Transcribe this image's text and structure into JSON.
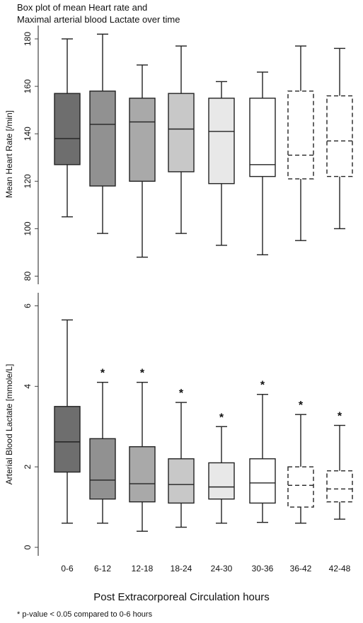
{
  "chart_data": [
    {
      "type": "box",
      "title": "Box plot of mean Heart rate and",
      "subtitle": "Maximal arterial blood Lactate over time",
      "ylabel": "Mean Heart Rate [/min]",
      "ylim": [
        80,
        185
      ],
      "yticks": [
        "80",
        "100",
        "120",
        "140",
        "160",
        "180"
      ],
      "categories": [
        "0-6",
        "6-12",
        "12-18",
        "18-24",
        "24-30",
        "30-36",
        "36-42",
        "42-48"
      ],
      "boxes": [
        {
          "min": 105,
          "q1": 127,
          "median": 138,
          "q3": 157,
          "max": 180
        },
        {
          "min": 98,
          "q1": 118,
          "median": 144,
          "q3": 158,
          "max": 182
        },
        {
          "min": 88,
          "q1": 120,
          "median": 145,
          "q3": 155,
          "max": 169
        },
        {
          "min": 98,
          "q1": 124,
          "median": 142,
          "q3": 157,
          "max": 177
        },
        {
          "min": 93,
          "q1": 119,
          "median": 141,
          "q3": 155,
          "max": 162
        },
        {
          "min": 89,
          "q1": 122,
          "median": 127,
          "q3": 155,
          "max": 166
        },
        {
          "min": 95,
          "q1": 121,
          "median": 131,
          "q3": 158,
          "max": 177
        },
        {
          "min": 100,
          "q1": 122,
          "median": 137,
          "q3": 156,
          "max": 176
        }
      ],
      "fills": [
        "#6e6e6e",
        "#919191",
        "#a9a9a9",
        "#c8c8c8",
        "#e8e8e8",
        "#ffffff",
        "#ffffff",
        "#ffffff"
      ],
      "dashed": [
        false,
        false,
        false,
        false,
        false,
        false,
        true,
        true
      ]
    },
    {
      "type": "box",
      "ylabel": "Arterial Blood Lactate [mmole/L]",
      "ylim": [
        0,
        6
      ],
      "yticks": [
        "0",
        "2",
        "4",
        "6"
      ],
      "xlabel": "Post Extracorporeal Circulation hours",
      "categories": [
        "0-6",
        "6-12",
        "12-18",
        "18-24",
        "24-30",
        "30-36",
        "36-42",
        "42-48"
      ],
      "boxes": [
        {
          "min": 0.6,
          "q1": 1.87,
          "median": 2.62,
          "q3": 3.5,
          "max": 5.65
        },
        {
          "min": 0.6,
          "q1": 1.2,
          "median": 1.67,
          "q3": 2.7,
          "max": 4.1
        },
        {
          "min": 0.4,
          "q1": 1.13,
          "median": 1.58,
          "q3": 2.5,
          "max": 4.1
        },
        {
          "min": 0.5,
          "q1": 1.1,
          "median": 1.56,
          "q3": 2.2,
          "max": 3.6
        },
        {
          "min": 0.6,
          "q1": 1.2,
          "median": 1.5,
          "q3": 2.1,
          "max": 3.0
        },
        {
          "min": 0.62,
          "q1": 1.1,
          "median": 1.6,
          "q3": 2.2,
          "max": 3.8
        },
        {
          "min": 0.6,
          "q1": 1.0,
          "median": 1.54,
          "q3": 2.0,
          "max": 3.3
        },
        {
          "min": 0.7,
          "q1": 1.13,
          "median": 1.45,
          "q3": 1.9,
          "max": 3.03
        }
      ],
      "significance_marker": "*",
      "significant": [
        false,
        true,
        true,
        true,
        true,
        true,
        true,
        true
      ],
      "fills": [
        "#6e6e6e",
        "#919191",
        "#a9a9a9",
        "#c8c8c8",
        "#e8e8e8",
        "#ffffff",
        "#ffffff",
        "#ffffff"
      ],
      "dashed": [
        false,
        false,
        false,
        false,
        false,
        false,
        true,
        true
      ]
    }
  ],
  "footnote": "* p-value < 0.05 compared to 0-6 hours"
}
